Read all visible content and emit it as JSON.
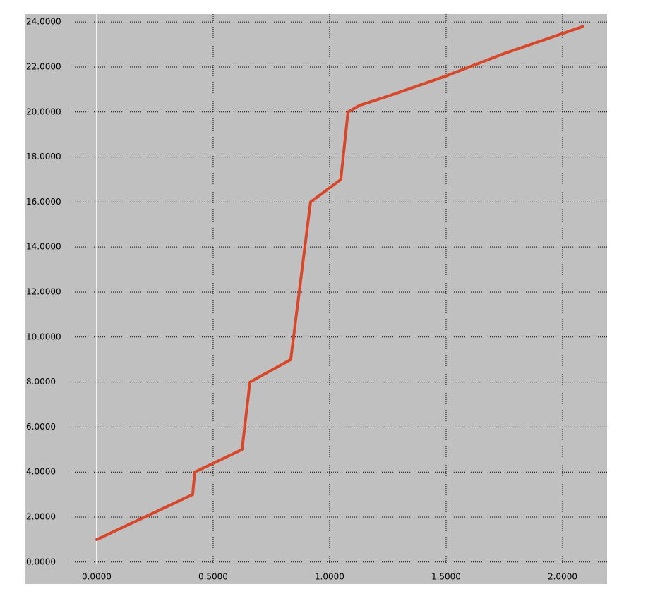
{
  "chart_data": {
    "type": "line",
    "x": [
      0,
      0.412,
      0.421,
      0.624,
      0.658,
      0.833,
      0.918,
      1.048,
      1.079,
      1.13,
      1.25,
      1.5,
      1.75,
      2.088
    ],
    "series": [
      {
        "color": "#d9472b",
        "values": [
          1,
          3,
          4,
          5,
          8,
          9,
          16,
          17,
          20,
          20.3,
          20.7,
          21.6,
          22.6,
          23.8
        ]
      }
    ],
    "xlim": [
      -0.112,
      2.191
    ],
    "ylim": [
      -0.1,
      24.35
    ],
    "xticks": [
      {
        "value": 0,
        "label": "0.0000"
      },
      {
        "value": 0.5,
        "label": "0.5000"
      },
      {
        "value": 1,
        "label": "1.0000"
      },
      {
        "value": 1.5,
        "label": "1.5000"
      },
      {
        "value": 2,
        "label": "2.0000"
      }
    ],
    "yticks": [
      {
        "value": 0,
        "label": "0.0000"
      },
      {
        "value": 2,
        "label": "2.0000"
      },
      {
        "value": 4,
        "label": "4.0000"
      },
      {
        "value": 6,
        "label": "6.0000"
      },
      {
        "value": 8,
        "label": "8.0000"
      },
      {
        "value": 10,
        "label": "10.0000"
      },
      {
        "value": 12,
        "label": "12.0000"
      },
      {
        "value": 14,
        "label": "14.0000"
      },
      {
        "value": 16,
        "label": "16.0000"
      },
      {
        "value": 18,
        "label": "18.0000"
      },
      {
        "value": 20,
        "label": "20.0000"
      },
      {
        "value": 22,
        "label": "22.0000"
      },
      {
        "value": 24,
        "label": "24.0000"
      }
    ],
    "grid": true
  }
}
